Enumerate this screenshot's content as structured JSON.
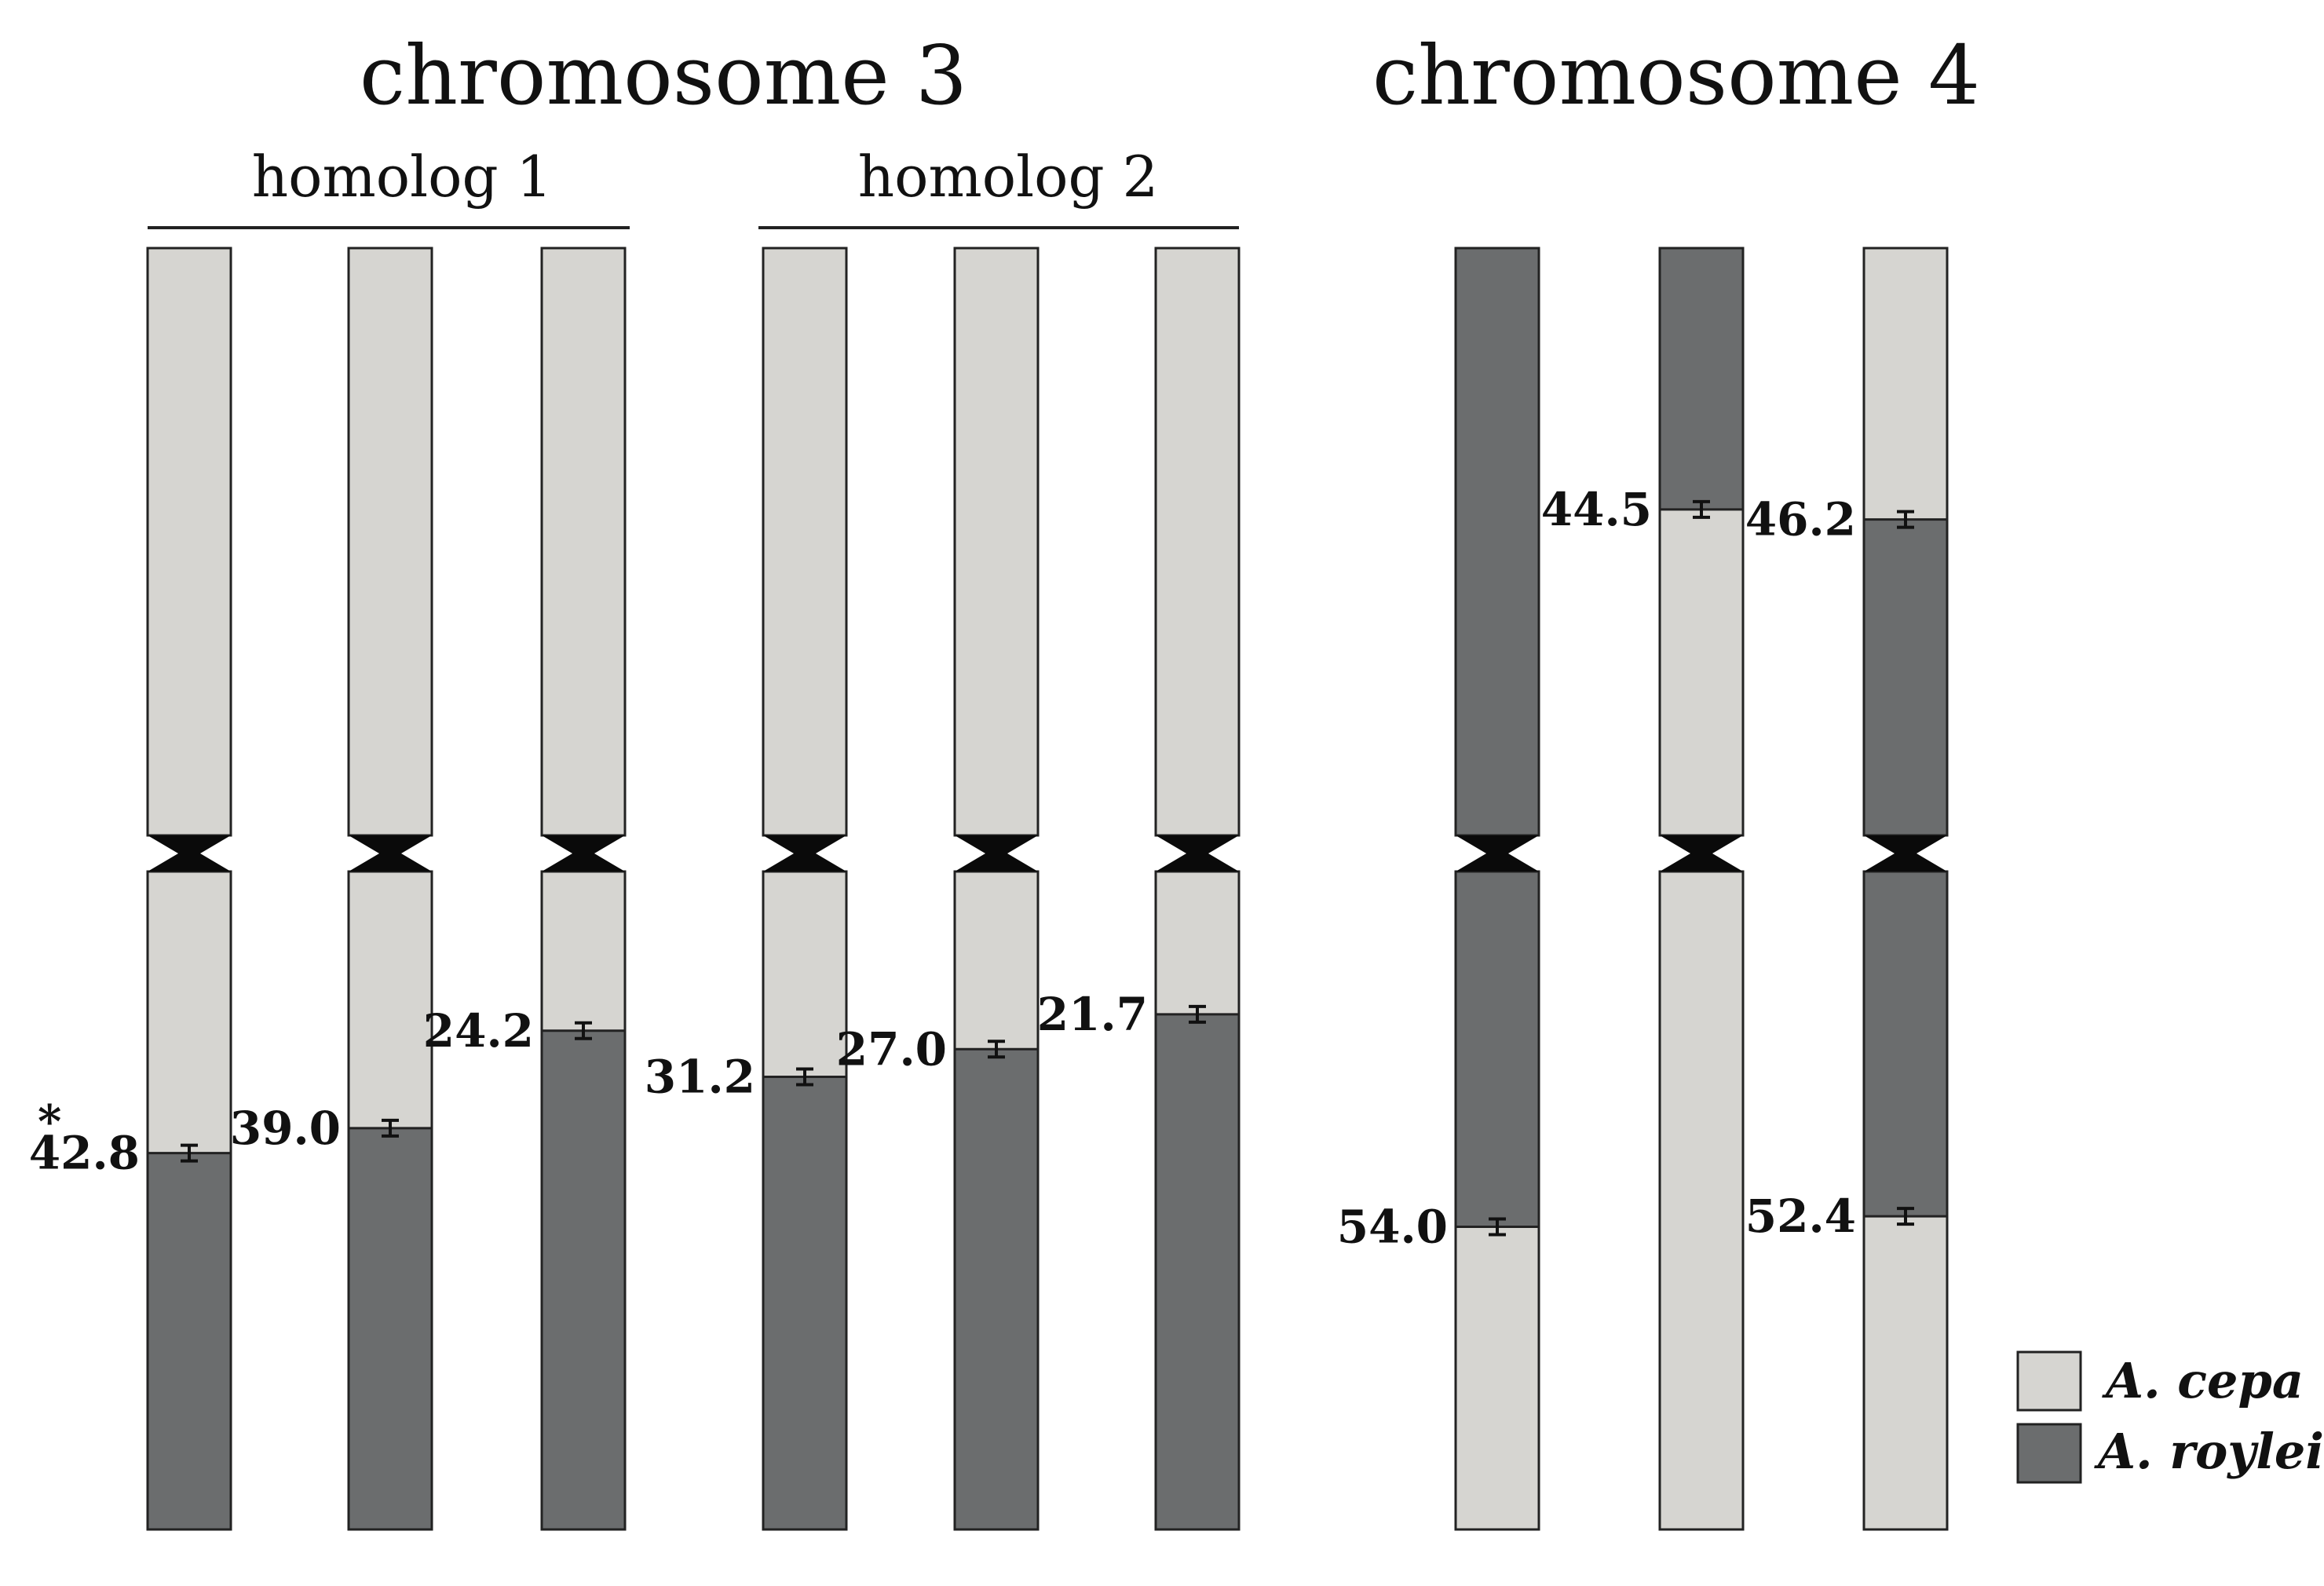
{
  "colors": {
    "cepa": "#d6d5d1",
    "roylei": "#6b6d6e",
    "outline": "#222222",
    "centromere": "#0a0a0a"
  },
  "titles": {
    "chr3": "chromosome 3",
    "chr4": "chromosome 4"
  },
  "homologs": {
    "h1": "homolog 1",
    "h2": "homolog 2"
  },
  "legend": {
    "cepa": "A. cepa",
    "roylei": "A. roylei"
  },
  "annotation": {
    "asterisk": "*"
  },
  "chromosomes": [
    {
      "group": "chr3-homolog-1",
      "top_species": "cepa",
      "upper_switch": null,
      "lower_switch": 42.8,
      "label": "42.8",
      "starred": true
    },
    {
      "group": "chr3-homolog-1",
      "top_species": "cepa",
      "upper_switch": null,
      "lower_switch": 39.0,
      "label": "39.0"
    },
    {
      "group": "chr3-homolog-1",
      "top_species": "cepa",
      "upper_switch": null,
      "lower_switch": 24.2,
      "label": "24.2"
    },
    {
      "group": "chr3-homolog-2",
      "top_species": "cepa",
      "upper_switch": null,
      "lower_switch": 31.2,
      "label": "31.2"
    },
    {
      "group": "chr3-homolog-2",
      "top_species": "cepa",
      "upper_switch": null,
      "lower_switch": 27.0,
      "label": "27.0"
    },
    {
      "group": "chr3-homolog-2",
      "top_species": "cepa",
      "upper_switch": null,
      "lower_switch": 21.7,
      "label": "21.7"
    },
    {
      "group": "chr4",
      "top_species": "roylei",
      "upper_switch": null,
      "lower_switch": 54.0,
      "label": "54.0"
    },
    {
      "group": "chr4",
      "top_species": "roylei",
      "upper_switch": 44.5,
      "lower_switch": null,
      "label": "44.5"
    },
    {
      "group": "chr4",
      "top_species": "cepa",
      "upper_switch": 46.2,
      "lower_switch": 52.4,
      "label": "46.2",
      "label2": "52.4"
    }
  ]
}
